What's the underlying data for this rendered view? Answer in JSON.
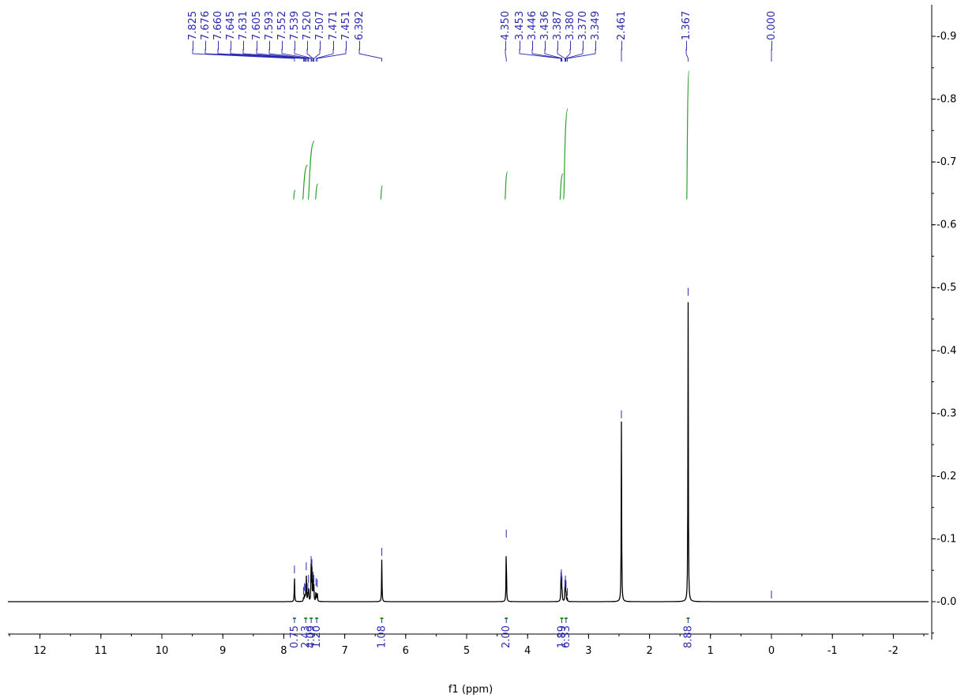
{
  "chart_data": {
    "type": "line",
    "title": "",
    "xlabel": "f1 (ppm)",
    "ylabel": "",
    "xlim": [
      12.5,
      -2.5
    ],
    "ylim": [
      -0.09,
      0.95
    ],
    "x_ticks": [
      "12",
      "11",
      "10",
      "9",
      "8",
      "7",
      "6",
      "5",
      "4",
      "3",
      "2",
      "1",
      "0",
      "-1",
      "-2"
    ],
    "y_ticks": [
      "0.0",
      "0.1",
      "0.2",
      "0.3",
      "0.4",
      "0.5",
      "0.6",
      "0.7",
      "0.8",
      "0.9"
    ],
    "colors": {
      "spectrum": "#000000",
      "peak_labels": "#2a2ab0",
      "integrals": "#2ca02c"
    },
    "peak_groups": [
      {
        "labels": [
          "7.825",
          "7.676",
          "7.660",
          "7.645",
          "7.631",
          "7.605",
          "7.593",
          "7.552",
          "7.539",
          "7.520",
          "7.507",
          "7.471",
          "7.451",
          "6.392"
        ]
      },
      {
        "labels": [
          "4.350",
          "3.453",
          "3.446",
          "3.436",
          "3.387",
          "3.380",
          "3.370",
          "3.349",
          "2.461"
        ]
      },
      {
        "labels": [
          "1.367"
        ]
      },
      {
        "labels": [
          "0.000"
        ]
      }
    ],
    "peaks": [
      {
        "ppm": 7.825,
        "height": 0.04
      },
      {
        "ppm": 7.676,
        "height": 0.006
      },
      {
        "ppm": 7.66,
        "height": 0.012
      },
      {
        "ppm": 7.645,
        "height": 0.01
      },
      {
        "ppm": 7.631,
        "height": 0.045
      },
      {
        "ppm": 7.605,
        "height": 0.012
      },
      {
        "ppm": 7.593,
        "height": 0.025
      },
      {
        "ppm": 7.552,
        "height": 0.055
      },
      {
        "ppm": 7.539,
        "height": 0.05
      },
      {
        "ppm": 7.52,
        "height": 0.03
      },
      {
        "ppm": 7.507,
        "height": 0.025
      },
      {
        "ppm": 7.471,
        "height": 0.02
      },
      {
        "ppm": 7.451,
        "height": 0.018
      },
      {
        "ppm": 6.392,
        "height": 0.068
      },
      {
        "ppm": 4.35,
        "height": 0.097
      },
      {
        "ppm": 3.453,
        "height": 0.03
      },
      {
        "ppm": 3.446,
        "height": 0.034
      },
      {
        "ppm": 3.436,
        "height": 0.022
      },
      {
        "ppm": 3.387,
        "height": 0.018
      },
      {
        "ppm": 3.38,
        "height": 0.024
      },
      {
        "ppm": 3.37,
        "height": 0.016
      },
      {
        "ppm": 3.349,
        "height": 0.004
      },
      {
        "ppm": 2.461,
        "height": 0.287
      },
      {
        "ppm": 1.367,
        "height": 0.482
      },
      {
        "ppm": 0.0,
        "height": 0.0
      }
    ],
    "integrals": [
      {
        "ppm": 7.825,
        "value": "0.75"
      },
      {
        "ppm": 7.64,
        "value": "2.43"
      },
      {
        "ppm": 7.55,
        "value": "4.09"
      },
      {
        "ppm": 7.46,
        "value": "1.20"
      },
      {
        "ppm": 6.392,
        "value": "1.08"
      },
      {
        "ppm": 4.35,
        "value": "2.00"
      },
      {
        "ppm": 3.44,
        "value": "1.89"
      },
      {
        "ppm": 3.37,
        "value": "6.33"
      },
      {
        "ppm": 1.367,
        "value": "8.88"
      }
    ],
    "integral_curves": [
      {
        "from": 7.84,
        "to": 7.81,
        "y_start": 0.64,
        "y_end": 0.655
      },
      {
        "from": 7.69,
        "to": 7.61,
        "y_start": 0.64,
        "y_end": 0.695
      },
      {
        "from": 7.6,
        "to": 7.5,
        "y_start": 0.64,
        "y_end": 0.733
      },
      {
        "from": 7.48,
        "to": 7.44,
        "y_start": 0.64,
        "y_end": 0.665
      },
      {
        "from": 6.41,
        "to": 6.38,
        "y_start": 0.64,
        "y_end": 0.662
      },
      {
        "from": 4.37,
        "to": 4.33,
        "y_start": 0.64,
        "y_end": 0.684
      },
      {
        "from": 3.47,
        "to": 3.42,
        "y_start": 0.64,
        "y_end": 0.681
      },
      {
        "from": 3.41,
        "to": 3.34,
        "y_start": 0.64,
        "y_end": 0.785
      },
      {
        "from": 1.39,
        "to": 1.35,
        "y_start": 0.64,
        "y_end": 0.845
      }
    ]
  }
}
